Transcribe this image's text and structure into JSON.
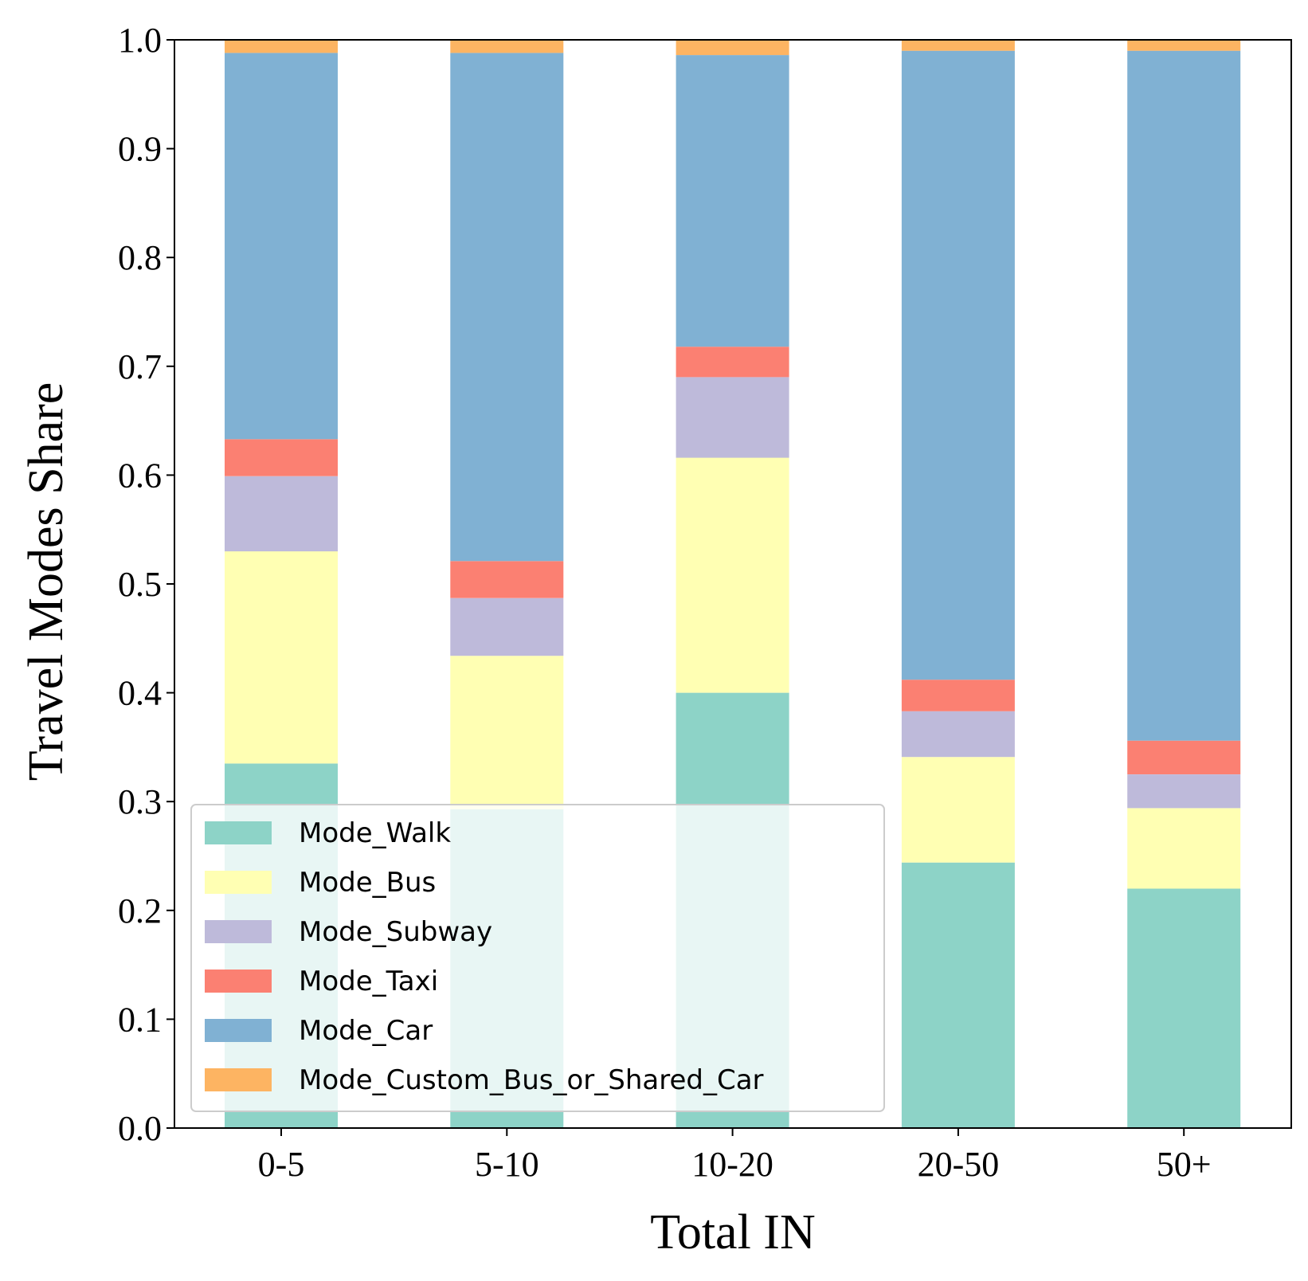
{
  "chart_data": {
    "type": "bar",
    "stacked": true,
    "xlabel": "Total IN",
    "ylabel": "Travel Modes Share",
    "ylim": [
      0,
      1.0
    ],
    "yticks": [
      "0.0",
      "0.1",
      "0.2",
      "0.3",
      "0.4",
      "0.5",
      "0.6",
      "0.7",
      "0.8",
      "0.9",
      "1.0"
    ],
    "categories": [
      "0-5",
      "5-10",
      "10-20",
      "20-50",
      "50+"
    ],
    "legend_position": "lower-left",
    "grid": false,
    "series": [
      {
        "name": "Mode_Walk",
        "color": "#8dd3c7",
        "values": [
          0.335,
          0.293,
          0.4,
          0.244,
          0.22
        ]
      },
      {
        "name": "Mode_Bus",
        "color": "#ffffb3",
        "values": [
          0.195,
          0.141,
          0.216,
          0.097,
          0.074
        ]
      },
      {
        "name": "Mode_Subway",
        "color": "#bebada",
        "values": [
          0.069,
          0.053,
          0.074,
          0.042,
          0.031
        ]
      },
      {
        "name": "Mode_Taxi",
        "color": "#fb8072",
        "values": [
          0.034,
          0.034,
          0.028,
          0.029,
          0.031
        ]
      },
      {
        "name": "Mode_Car",
        "color": "#80b1d3",
        "values": [
          0.355,
          0.467,
          0.268,
          0.578,
          0.634
        ]
      },
      {
        "name": "Mode_Custom_Bus_or_Shared_Car",
        "color": "#fdb462",
        "values": [
          0.012,
          0.012,
          0.014,
          0.01,
          0.01
        ]
      }
    ]
  }
}
